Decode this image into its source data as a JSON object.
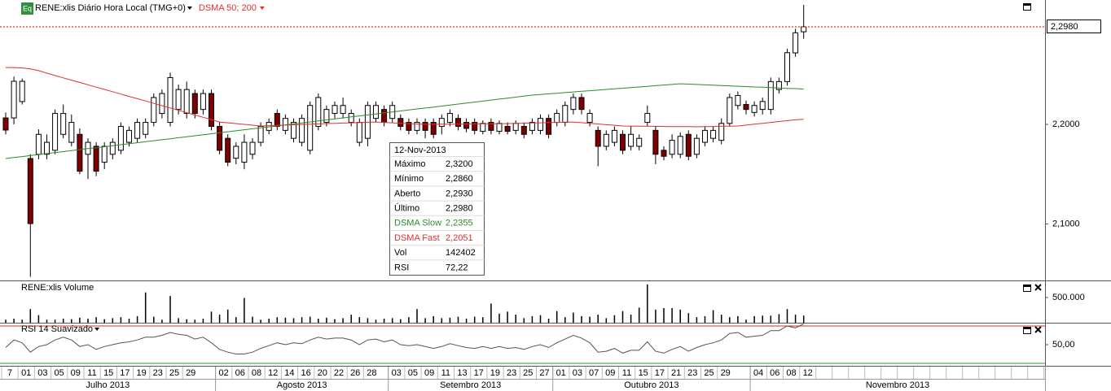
{
  "chart_data": [
    {
      "type": "candlestick",
      "icon": "Eq",
      "title": "RENE:xlis Diário Hora Local (TMG+0)",
      "indicator": "DSMA 50; 200",
      "categories": [
        "7",
        null,
        "01",
        null,
        "03",
        null,
        "05",
        null,
        "09",
        null,
        "11",
        null,
        "15",
        null,
        "17",
        null,
        "19",
        null,
        "23",
        null,
        "25",
        null,
        "29",
        null,
        null,
        null,
        "02",
        null,
        "06",
        null,
        "08",
        null,
        "12",
        null,
        "14",
        null,
        "16",
        null,
        "20",
        null,
        "22",
        null,
        "26",
        null,
        "28",
        null,
        null,
        "03",
        null,
        "05",
        null,
        "09",
        null,
        "11",
        null,
        "13",
        null,
        "17",
        null,
        "19",
        null,
        "23",
        null,
        "25",
        null,
        "27",
        null,
        "01",
        null,
        "03",
        null,
        "07",
        null,
        "09",
        null,
        "11",
        null,
        "15",
        null,
        "17",
        null,
        "21",
        null,
        "23",
        null,
        "25",
        null,
        "29",
        null,
        null,
        null,
        "04",
        null,
        "06",
        null,
        "08",
        null,
        "12"
      ],
      "months": [
        "Julho 2013",
        "Agosto 2013",
        "Setembro 2013",
        "Outubro 2013",
        "Novembro 2013"
      ],
      "open": [
        2.2065,
        2.2065,
        2.2229,
        2.1657,
        2.17,
        2.17,
        2.174,
        2.19,
        2.182,
        2.19,
        2.17,
        2.178,
        2.162,
        2.17,
        2.174,
        2.182,
        2.186,
        2.19,
        2.202,
        2.211,
        2.202,
        2.215,
        2.211,
        2.231,
        2.215,
        2.231,
        2.198,
        2.186,
        2.166,
        2.162,
        2.17,
        2.182,
        2.194,
        2.211,
        2.194,
        2.186,
        2.182,
        2.174,
        2.198,
        2.202,
        2.211,
        2.211,
        2.202,
        2.182,
        2.186,
        2.206,
        2.215,
        2.206,
        2.206,
        2.202,
        2.194,
        2.202,
        2.202,
        2.198,
        2.202,
        2.206,
        2.202,
        2.202,
        2.193,
        2.202,
        2.193,
        2.198,
        2.194,
        2.198,
        2.194,
        2.194,
        2.206,
        2.202,
        2.202,
        2.215,
        2.227,
        2.202,
        2.194,
        2.178,
        2.182,
        2.19,
        2.178,
        2.178,
        2.202,
        2.194,
        2.174,
        2.17,
        2.17,
        2.19,
        2.17,
        2.182,
        2.186,
        2.184,
        2.201,
        2.219,
        2.22,
        2.212,
        2.215,
        2.215,
        2.235,
        2.243,
        2.2718,
        2.293
      ],
      "high": [
        2.212,
        2.248,
        2.246,
        2.17,
        2.195,
        2.19,
        2.215,
        2.22,
        2.21,
        2.196,
        2.186,
        2.182,
        2.182,
        2.186,
        2.202,
        2.198,
        2.206,
        2.206,
        2.231,
        2.235,
        2.252,
        2.24,
        2.243,
        2.235,
        2.235,
        2.235,
        2.202,
        2.19,
        2.182,
        2.19,
        2.186,
        2.202,
        2.206,
        2.215,
        2.21,
        2.206,
        2.21,
        2.223,
        2.231,
        2.219,
        2.223,
        2.227,
        2.215,
        2.206,
        2.223,
        2.223,
        2.219,
        2.223,
        2.21,
        2.206,
        2.206,
        2.206,
        2.206,
        2.21,
        2.215,
        2.21,
        2.206,
        2.206,
        2.204,
        2.206,
        2.204,
        2.202,
        2.204,
        2.202,
        2.206,
        2.21,
        2.21,
        2.215,
        2.223,
        2.231,
        2.231,
        2.215,
        2.198,
        2.194,
        2.198,
        2.194,
        2.198,
        2.19,
        2.219,
        2.198,
        2.178,
        2.19,
        2.192,
        2.194,
        2.19,
        2.198,
        2.198,
        2.206,
        2.231,
        2.233,
        2.224,
        2.223,
        2.227,
        2.247,
        2.247,
        2.276,
        2.296,
        2.32
      ],
      "low": [
        2.19,
        2.2,
        2.22,
        2.047,
        2.165,
        2.165,
        2.17,
        2.186,
        2.178,
        2.15,
        2.145,
        2.148,
        2.155,
        2.165,
        2.17,
        2.178,
        2.182,
        2.186,
        2.198,
        2.206,
        2.198,
        2.21,
        2.206,
        2.206,
        2.21,
        2.194,
        2.17,
        2.158,
        2.16,
        2.155,
        2.165,
        2.178,
        2.19,
        2.194,
        2.19,
        2.182,
        2.178,
        2.17,
        2.194,
        2.198,
        2.206,
        2.206,
        2.198,
        2.178,
        2.178,
        2.202,
        2.198,
        2.202,
        2.194,
        2.19,
        2.19,
        2.186,
        2.186,
        2.19,
        2.198,
        2.194,
        2.192,
        2.19,
        2.19,
        2.19,
        2.19,
        2.19,
        2.19,
        2.186,
        2.19,
        2.19,
        2.186,
        2.198,
        2.198,
        2.21,
        2.21,
        2.198,
        2.158,
        2.174,
        2.178,
        2.17,
        2.174,
        2.174,
        2.198,
        2.16,
        2.164,
        2.166,
        2.166,
        2.164,
        2.166,
        2.178,
        2.182,
        2.18,
        2.198,
        2.215,
        2.21,
        2.208,
        2.21,
        2.21,
        2.231,
        2.239,
        2.268,
        2.286
      ],
      "close": [
        2.1943,
        2.2433,
        2.2433,
        2.1004,
        2.19,
        2.182,
        2.211,
        2.211,
        2.202,
        2.153,
        2.182,
        2.153,
        2.178,
        2.182,
        2.198,
        2.194,
        2.202,
        2.202,
        2.227,
        2.231,
        2.247,
        2.235,
        2.235,
        2.211,
        2.231,
        2.198,
        2.174,
        2.162,
        2.178,
        2.182,
        2.182,
        2.198,
        2.202,
        2.198,
        2.206,
        2.202,
        2.206,
        2.219,
        2.227,
        2.215,
        2.219,
        2.219,
        2.211,
        2.202,
        2.219,
        2.219,
        2.202,
        2.219,
        2.198,
        2.194,
        2.202,
        2.194,
        2.19,
        2.206,
        2.211,
        2.198,
        2.196,
        2.194,
        2.201,
        2.194,
        2.201,
        2.193,
        2.201,
        2.19,
        2.202,
        2.206,
        2.19,
        2.211,
        2.219,
        2.227,
        2.215,
        2.211,
        2.178,
        2.19,
        2.194,
        2.174,
        2.19,
        2.186,
        2.211,
        2.17,
        2.168,
        2.184,
        2.188,
        2.168,
        2.186,
        2.194,
        2.194,
        2.201,
        2.227,
        2.229,
        2.215,
        2.219,
        2.223,
        2.243,
        2.243,
        2.272,
        2.292,
        2.298
      ],
      "up_color": "#ffffff",
      "down_color": "#800000",
      "series": [
        {
          "name": "DSMA Slow",
          "color": "#2e8b2e",
          "values": [
            2.1657,
            2.1667,
            2.1677,
            2.1687,
            2.1697,
            2.1707,
            2.1717,
            2.1727,
            2.1737,
            2.1747,
            2.1757,
            2.1766,
            2.1776,
            2.1786,
            2.1796,
            2.1806,
            2.1816,
            2.1826,
            2.1836,
            2.1846,
            2.1856,
            2.1866,
            2.1876,
            2.1886,
            2.1896,
            2.1906,
            2.1916,
            2.1926,
            2.1936,
            2.1946,
            2.1956,
            2.1965,
            2.1975,
            2.1985,
            2.1995,
            2.2005,
            2.2015,
            2.2025,
            2.2035,
            2.2045,
            2.2055,
            2.2065,
            2.2075,
            2.2085,
            2.2095,
            2.2105,
            2.2115,
            2.2125,
            2.2135,
            2.2145,
            2.2155,
            2.2164,
            2.2174,
            2.2184,
            2.2194,
            2.2204,
            2.2214,
            2.2224,
            2.2234,
            2.2244,
            2.2254,
            2.2264,
            2.2274,
            2.2284,
            2.2294,
            2.23,
            2.2307,
            2.2313,
            2.2319,
            2.2326,
            2.2332,
            2.2338,
            2.2344,
            2.2351,
            2.2357,
            2.2363,
            2.237,
            2.2376,
            2.2382,
            2.2389,
            2.2395,
            2.2401,
            2.2408,
            2.2404,
            2.2401,
            2.2397,
            2.2394,
            2.239,
            2.2387,
            2.2383,
            2.238,
            2.2376,
            2.2373,
            2.2369,
            2.2366,
            2.2362,
            2.2359,
            2.2355
          ]
        },
        {
          "name": "DSMA Fast",
          "color": "#e03030",
          "values": [
            2.2571,
            2.2571,
            2.2567,
            2.2557,
            2.254,
            2.2514,
            2.2491,
            2.2467,
            2.2444,
            2.2421,
            2.2398,
            2.2374,
            2.2351,
            2.2328,
            2.2305,
            2.2281,
            2.2258,
            2.2235,
            2.2211,
            2.2188,
            2.2165,
            2.2141,
            2.2118,
            2.2094,
            2.2071,
            2.2048,
            2.2024,
            2.2016,
            2.2008,
            2.2,
            2.1992,
            2.1984,
            2.1987,
            2.199,
            2.1993,
            2.1996,
            2.1999,
            2.2002,
            2.2005,
            2.2008,
            2.2011,
            2.2013,
            2.2016,
            2.2019,
            2.2021,
            2.2024,
            2.202,
            2.2016,
            2.2012,
            2.2008,
            2.2004,
            2.2,
            2.2001,
            2.2002,
            2.2002,
            2.2003,
            2.2004,
            2.2005,
            2.2006,
            2.2006,
            2.2007,
            2.2008,
            2.201,
            2.2012,
            2.2014,
            2.2016,
            2.2018,
            2.202,
            2.2022,
            2.2024,
            2.2017,
            2.2011,
            2.2004,
            2.1997,
            2.1991,
            2.1984,
            2.1983,
            2.1982,
            2.1981,
            2.198,
            2.1979,
            2.1978,
            2.1977,
            2.1977,
            2.1976,
            2.1978,
            2.1979,
            2.1981,
            2.1982,
            2.1984,
            2.1993,
            2.2002,
            2.2011,
            2.202,
            2.2029,
            2.2038,
            2.2046,
            2.2051
          ]
        }
      ],
      "ylim": [
        2.0433,
        2.3249
      ],
      "yticks": [
        {
          "value": 2.1,
          "label": "2,1000"
        },
        {
          "value": 2.2,
          "label": "2,2000"
        }
      ],
      "last_price": {
        "value": 2.298,
        "label": "2,2980",
        "color": "#cc0000"
      },
      "tooltip": {
        "title": "12-Nov-2013",
        "rows": [
          {
            "label": "Máximo",
            "value": "2,3200"
          },
          {
            "label": "Mínimo",
            "value": "2,2860"
          },
          {
            "label": "Aberto",
            "value": "2,2930"
          },
          {
            "label": "Último",
            "value": "2,2980"
          },
          {
            "value": "2,2355"
          },
          {
            "value": "2,2051"
          },
          {
            "label": "Vol",
            "value": "142402"
          },
          {
            "label": "RSI",
            "value": "72,22"
          }
        ]
      }
    },
    {
      "type": "bar",
      "title": "RENE:xlis Volume",
      "color": "#000000",
      "values": [
        60000,
        80000,
        60000,
        270000,
        150000,
        60000,
        60000,
        80000,
        70000,
        100000,
        80000,
        110000,
        70000,
        90000,
        110000,
        80000,
        130000,
        600000,
        120000,
        60000,
        530000,
        90000,
        70000,
        60000,
        80000,
        220000,
        160000,
        260000,
        110000,
        490000,
        120000,
        60000,
        80000,
        110000,
        100000,
        90000,
        110000,
        120000,
        80000,
        100000,
        70000,
        90000,
        160000,
        110000,
        90000,
        60000,
        80000,
        90000,
        70000,
        110000,
        270000,
        90000,
        130000,
        90000,
        100000,
        120000,
        80000,
        120000,
        110000,
        380000,
        180000,
        220000,
        160000,
        90000,
        130000,
        150000,
        80000,
        230000,
        110000,
        200000,
        130000,
        120000,
        160000,
        90000,
        150000,
        230000,
        160000,
        300000,
        760000,
        260000,
        290000,
        290000,
        260000,
        190000,
        110000,
        130000,
        250000,
        160000,
        110000,
        130000,
        60000,
        130000,
        140000,
        140000,
        170000,
        270000,
        160000,
        142402
      ],
      "ylim": [
        0,
        822580
      ],
      "yticks": [
        {
          "value": 500000,
          "label": "500.000"
        }
      ]
    },
    {
      "type": "line",
      "title": "RSI 14 Suavizado",
      "color": "#555555",
      "values": [
        47,
        55,
        52,
        42,
        48,
        50,
        55,
        58,
        55,
        48,
        50,
        45,
        48,
        50,
        52,
        53,
        55,
        58,
        58,
        60,
        63,
        61,
        60,
        56,
        58,
        52,
        45,
        42,
        40,
        40,
        42,
        46,
        49,
        52,
        50,
        52,
        51,
        55,
        58,
        56,
        57,
        57,
        55,
        50,
        55,
        56,
        53,
        55,
        50,
        49,
        50,
        48,
        46,
        48,
        51,
        49,
        47,
        46,
        48,
        46,
        48,
        46,
        47,
        45,
        48,
        50,
        47,
        52,
        56,
        60,
        57,
        52,
        42,
        43,
        46,
        41,
        44,
        44,
        53,
        43,
        41,
        45,
        48,
        43,
        47,
        50,
        52,
        55,
        62,
        63,
        58,
        59,
        60,
        65,
        65,
        70,
        68,
        72.22
      ],
      "ylim": [
        27.4,
        72.6
      ],
      "yticks": [
        {
          "value": 50,
          "label": "50,00"
        }
      ],
      "levels": [
        {
          "value": 70,
          "color": "#d03030"
        },
        {
          "value": 30,
          "color": "#2e9a2e"
        }
      ]
    }
  ]
}
